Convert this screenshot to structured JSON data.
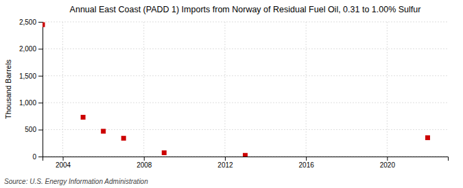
{
  "chart_data": {
    "type": "scatter",
    "title": "Annual East Coast (PADD 1) Imports from Norway of Residual Fuel Oil, 0.31 to 1.00% Sulfur",
    "ylabel": "Thousand Barrels",
    "annotations": [
      "Source: U.S. Energy Information Administration"
    ],
    "x": [
      2003,
      2005,
      2006,
      2007,
      2009,
      2013,
      2022
    ],
    "values": [
      2448,
      730,
      470,
      340,
      70,
      22,
      350
    ],
    "color": "#cc0000",
    "marker": "square",
    "xlim": [
      2003,
      2023
    ],
    "xticks": [
      2004,
      2008,
      2012,
      2016,
      2020
    ],
    "ylim": [
      0,
      2500
    ],
    "yticks": [
      0,
      500,
      {
        "value": 1000,
        "label": "1,000"
      },
      {
        "value": 1500,
        "label": "1,500"
      },
      {
        "value": 2000,
        "label": "2,000"
      },
      {
        "value": 2500,
        "label": "2,500"
      }
    ],
    "grid": true
  }
}
